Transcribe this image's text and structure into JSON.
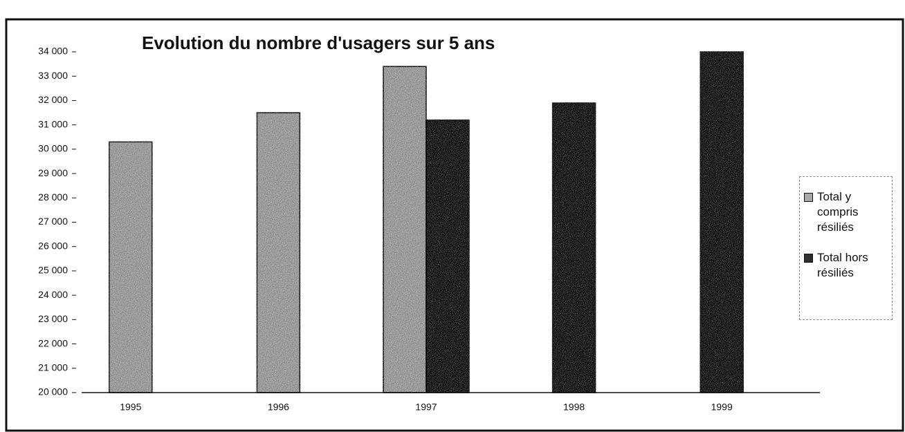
{
  "chart_data": {
    "type": "bar",
    "title": "Evolution du nombre d'usagers sur 5 ans",
    "categories": [
      "1995",
      "1996",
      "1997",
      "1998",
      "1999"
    ],
    "series": [
      {
        "name": "Total y compris résiliés",
        "color": "#a8a8a8",
        "values": [
          30300,
          31500,
          33400,
          null,
          null
        ]
      },
      {
        "name": "Total hors résiliés",
        "color": "#2e2e2e",
        "values": [
          null,
          null,
          31200,
          31900,
          34000
        ]
      }
    ],
    "ylim": [
      20000,
      34000
    ],
    "yticks": [
      {
        "value": 20000,
        "label": "20 000"
      },
      {
        "value": 21000,
        "label": "21 000"
      },
      {
        "value": 22000,
        "label": "22 000"
      },
      {
        "value": 23000,
        "label": "23 000"
      },
      {
        "value": 24000,
        "label": "24 000"
      },
      {
        "value": 25000,
        "label": "25 000"
      },
      {
        "value": 26000,
        "label": "26 000"
      },
      {
        "value": 27000,
        "label": "27 000"
      },
      {
        "value": 28000,
        "label": "28 000"
      },
      {
        "value": 29000,
        "label": "29 000"
      },
      {
        "value": 30000,
        "label": "30 000"
      },
      {
        "value": 31000,
        "label": "31 000"
      },
      {
        "value": 32000,
        "label": "32 000"
      },
      {
        "value": 33000,
        "label": "33 000"
      },
      {
        "value": 34000,
        "label": "34 000"
      }
    ],
    "grid": false,
    "legend": "right"
  }
}
